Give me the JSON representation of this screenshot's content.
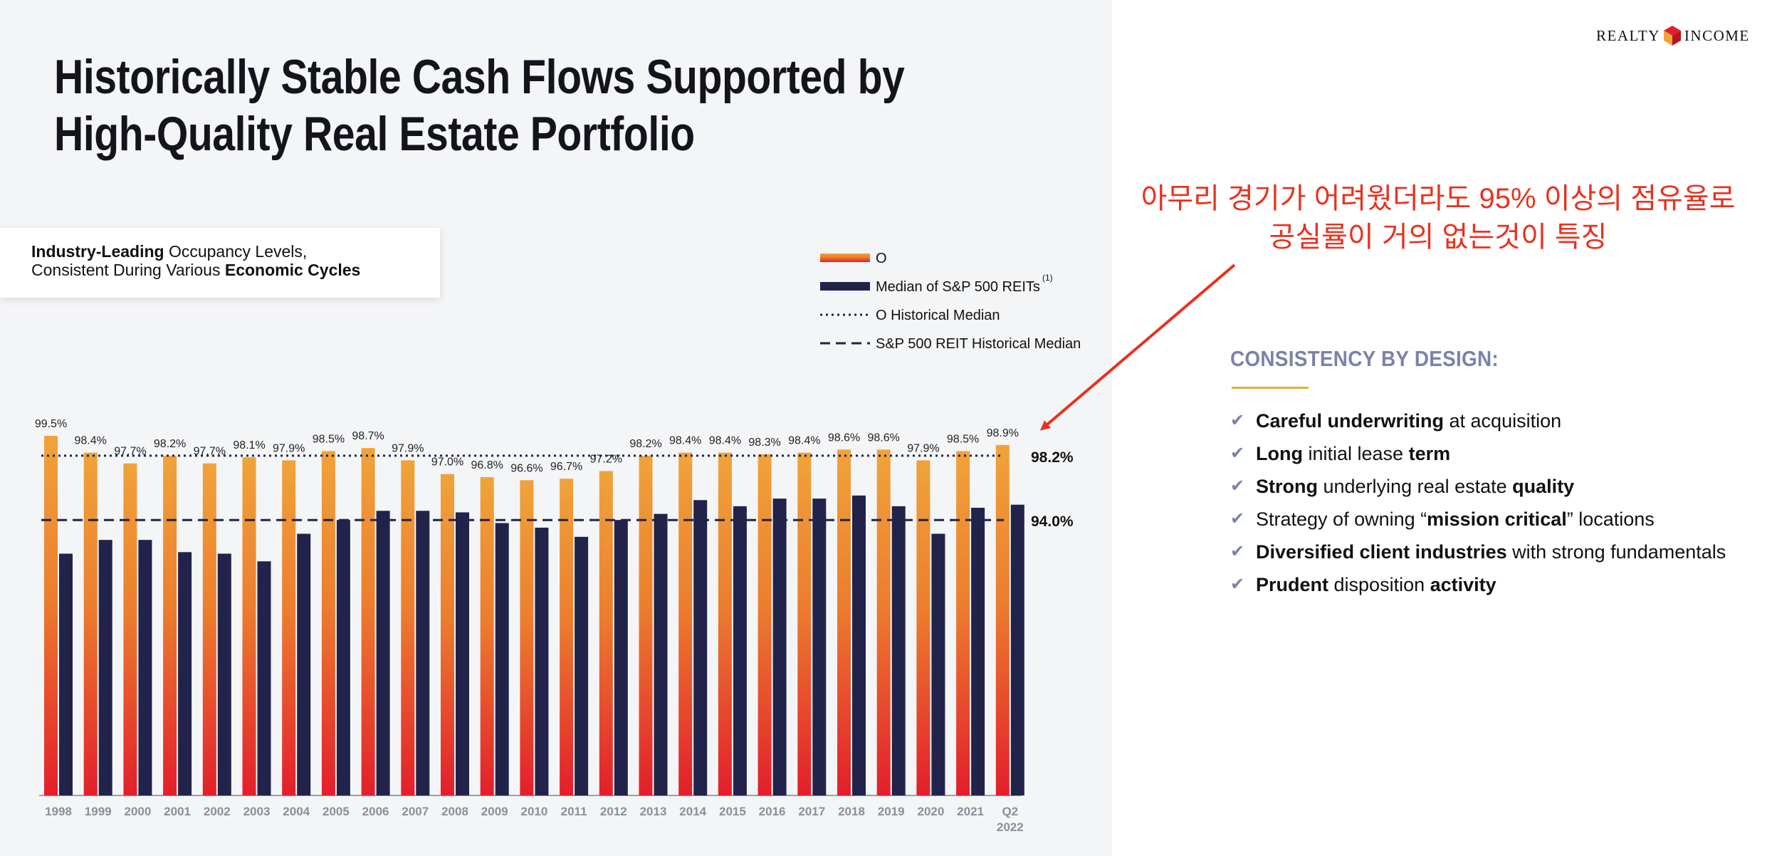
{
  "title": "Historically Stable Cash Flows Supported by High-Quality Real Estate Portfolio",
  "callout": {
    "line1_bold": "Industry-Leading",
    "line1_rest": " Occupancy Levels,",
    "line2_rest": "Consistent During Various ",
    "line2_bold": "Economic Cycles"
  },
  "logo": {
    "left": "REALTY",
    "right": "INCOME"
  },
  "annotation": {
    "line1": "아무리 경기가 어려웠더라도 95% 이상의 점유율로",
    "line2": "공실률이 거의 없는것이 특징"
  },
  "consistency": {
    "heading": "CONSISTENCY BY DESIGN:",
    "items": [
      [
        {
          "t": "Careful underwriting",
          "b": true
        },
        {
          "t": " at acquisition",
          "b": false
        }
      ],
      [
        {
          "t": "Long",
          "b": true
        },
        {
          "t": " initial lease ",
          "b": false
        },
        {
          "t": "term",
          "b": true
        }
      ],
      [
        {
          "t": "Strong",
          "b": true
        },
        {
          "t": " underlying real estate ",
          "b": false
        },
        {
          "t": "quality",
          "b": true
        }
      ],
      [
        {
          "t": "Strategy of owning “",
          "b": false
        },
        {
          "t": "mission critical",
          "b": true
        },
        {
          "t": "” locations",
          "b": false
        }
      ],
      [
        {
          "t": "Diversified client industries",
          "b": true
        },
        {
          "t": " with strong fundamentals",
          "b": false
        }
      ],
      [
        {
          "t": "Prudent",
          "b": true
        },
        {
          "t": " disposition ",
          "b": false
        },
        {
          "t": "activity",
          "b": true
        }
      ]
    ]
  },
  "colors": {
    "o_top": "#f0a33a",
    "o_bottom": "#e31e2c",
    "sp": "#22234a",
    "annotation": "#e8321e",
    "accent": "#7a82aa",
    "rule": "#e1ae3c"
  },
  "chart_data": {
    "type": "bar",
    "categories": [
      "1998",
      "1999",
      "2000",
      "2001",
      "2002",
      "2003",
      "2004",
      "2005",
      "2006",
      "2007",
      "2008",
      "2009",
      "2010",
      "2011",
      "2012",
      "2013",
      "2014",
      "2015",
      "2016",
      "2017",
      "2018",
      "2019",
      "2020",
      "2021",
      "Q2\n2022"
    ],
    "series": [
      {
        "name": "O",
        "values": [
          99.5,
          98.4,
          97.7,
          98.2,
          97.7,
          98.1,
          97.9,
          98.5,
          98.7,
          97.9,
          97.0,
          96.8,
          96.6,
          96.7,
          97.2,
          98.2,
          98.4,
          98.4,
          98.3,
          98.4,
          98.6,
          98.6,
          97.9,
          98.5,
          98.9
        ],
        "labels": [
          "99.5%",
          "98.4%",
          "97.7%",
          "98.2%",
          "97.7%",
          "98.1%",
          "97.9%",
          "98.5%",
          "98.7%",
          "97.9%",
          "97.0%",
          "96.8%",
          "96.6%",
          "96.7%",
          "97.2%",
          "98.2%",
          "98.4%",
          "98.4%",
          "98.3%",
          "98.4%",
          "98.6%",
          "98.6%",
          "97.9%",
          "98.5%",
          "98.9%"
        ]
      },
      {
        "name": "Median of S&P 500 REITs",
        "footnote": "(1)",
        "values": [
          91.8,
          92.7,
          92.7,
          91.9,
          91.8,
          91.3,
          93.1,
          94.0,
          94.6,
          94.6,
          94.5,
          93.8,
          93.5,
          92.9,
          94.0,
          94.4,
          95.3,
          94.9,
          95.4,
          95.4,
          95.6,
          94.9,
          93.1,
          94.8,
          95.0
        ]
      }
    ],
    "reference_lines": [
      {
        "name": "O Historical Median",
        "value": 98.2,
        "label": "98.2%",
        "style": "dotted"
      },
      {
        "name": "S&P 500 REIT Historical Median",
        "value": 94.0,
        "label": "94.0%",
        "style": "dashed"
      }
    ],
    "ylim": [
      76,
      100
    ],
    "legend_position": "top-right",
    "grid": false
  }
}
